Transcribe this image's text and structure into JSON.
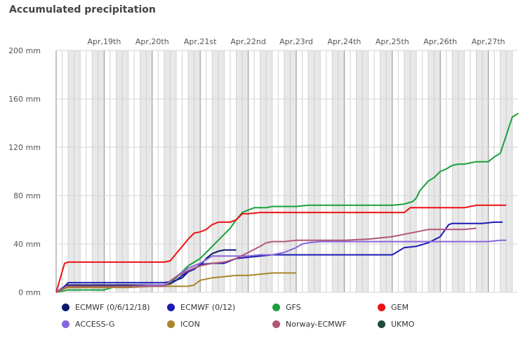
{
  "chart_data": {
    "type": "line",
    "title": "Accumulated precipitation",
    "ylabel": "",
    "xlabel": "",
    "ylim": [
      0,
      200
    ],
    "xlim": [
      0,
      37.5
    ],
    "x_units": "6-hour steps since Apr 18th 00:00",
    "y_ticks": [
      "0 mm",
      "40 mm",
      "80 mm",
      "120 mm",
      "160 mm",
      "200 mm"
    ],
    "y_tick_values": [
      0,
      40,
      80,
      120,
      160,
      200
    ],
    "x_ticks": [
      {
        "label": "Apr,19th",
        "x": 6
      },
      {
        "label": "Apr,20th",
        "x": 10
      },
      {
        "label": "Apr,21st",
        "x": 14
      },
      {
        "label": "Apr,22nd",
        "x": 18
      },
      {
        "label": "Apr,23rd",
        "x": 22
      },
      {
        "label": "Apr,24th",
        "x": 26
      },
      {
        "label": "Apr,25th",
        "x": 30
      },
      {
        "label": "Apr,26th",
        "x": 34
      },
      {
        "label": "Apr,27th",
        "x": 38
      }
    ],
    "series": [
      {
        "name": "ECMWF (0/6/12/18)",
        "color": "#0a1a6e",
        "points": [
          [
            0,
            0
          ],
          [
            0.5,
            2
          ],
          [
            0.8,
            6
          ],
          [
            1,
            6
          ],
          [
            2,
            6
          ],
          [
            4,
            6
          ],
          [
            6,
            6
          ],
          [
            8,
            6
          ],
          [
            9,
            6
          ],
          [
            9.5,
            7
          ],
          [
            10,
            10
          ],
          [
            10.5,
            12
          ],
          [
            11,
            17
          ],
          [
            11.5,
            20
          ],
          [
            12,
            22
          ],
          [
            12.5,
            28
          ],
          [
            13,
            32
          ],
          [
            13.5,
            34
          ],
          [
            14,
            35
          ],
          [
            15,
            35
          ]
        ]
      },
      {
        "name": "ECMWF (0/12)",
        "color": "#1a1ab5",
        "points": [
          [
            0,
            0
          ],
          [
            0.7,
            5
          ],
          [
            1,
            8
          ],
          [
            2,
            8
          ],
          [
            4,
            8
          ],
          [
            6,
            8
          ],
          [
            8,
            8
          ],
          [
            9,
            8
          ],
          [
            9.5,
            9
          ],
          [
            10,
            10
          ],
          [
            10.5,
            14
          ],
          [
            11,
            17
          ],
          [
            11.5,
            19
          ],
          [
            12,
            23
          ],
          [
            13,
            24
          ],
          [
            14,
            24
          ],
          [
            14.5,
            26
          ],
          [
            15,
            28
          ],
          [
            16,
            29
          ],
          [
            17,
            30
          ],
          [
            18,
            31
          ],
          [
            20,
            31
          ],
          [
            25,
            31
          ],
          [
            28,
            31
          ],
          [
            29,
            37
          ],
          [
            30,
            38
          ],
          [
            31,
            41
          ],
          [
            32,
            46
          ],
          [
            32.7,
            56
          ],
          [
            33,
            57
          ],
          [
            34,
            57
          ],
          [
            35.5,
            57
          ],
          [
            36.5,
            58
          ],
          [
            37.2,
            58
          ]
        ]
      },
      {
        "name": "GFS",
        "color": "#19a03b",
        "points": [
          [
            0,
            0
          ],
          [
            1,
            2
          ],
          [
            2,
            2
          ],
          [
            3,
            2
          ],
          [
            4,
            2
          ],
          [
            5,
            5
          ],
          [
            6,
            5
          ],
          [
            8,
            5
          ],
          [
            9,
            5
          ],
          [
            10,
            12
          ],
          [
            11,
            22
          ],
          [
            12,
            28
          ],
          [
            13,
            38
          ],
          [
            14,
            48
          ],
          [
            14.5,
            53
          ],
          [
            15,
            60
          ],
          [
            15.5,
            66
          ],
          [
            16,
            68
          ],
          [
            16.5,
            70
          ],
          [
            17,
            70
          ],
          [
            17.5,
            70
          ],
          [
            18,
            71
          ],
          [
            19,
            71
          ],
          [
            20,
            71
          ],
          [
            21,
            72
          ],
          [
            22,
            72
          ],
          [
            24,
            72
          ],
          [
            26,
            72
          ],
          [
            28,
            72
          ],
          [
            29,
            73
          ],
          [
            29.7,
            75
          ],
          [
            30,
            78
          ],
          [
            30.3,
            84
          ],
          [
            31,
            92
          ],
          [
            31.5,
            95
          ],
          [
            32,
            100
          ],
          [
            32.5,
            102
          ],
          [
            33,
            105
          ],
          [
            33.5,
            106
          ],
          [
            34,
            106
          ],
          [
            34.5,
            107
          ],
          [
            35,
            108
          ],
          [
            36,
            108
          ],
          [
            36.5,
            112
          ],
          [
            37,
            115
          ],
          [
            37.5,
            130
          ],
          [
            38,
            145
          ],
          [
            38.5,
            148
          ]
        ]
      },
      {
        "name": "GEM",
        "color": "#ee1111",
        "points": [
          [
            0,
            0
          ],
          [
            0.7,
            24
          ],
          [
            1,
            25
          ],
          [
            2,
            25
          ],
          [
            4,
            25
          ],
          [
            6,
            25
          ],
          [
            8,
            25
          ],
          [
            9,
            25
          ],
          [
            9.5,
            26
          ],
          [
            10,
            32
          ],
          [
            11,
            44
          ],
          [
            11.5,
            49
          ],
          [
            12,
            50
          ],
          [
            12.5,
            52
          ],
          [
            13,
            56
          ],
          [
            13.5,
            58
          ],
          [
            14,
            58
          ],
          [
            14.5,
            58
          ],
          [
            15,
            60
          ],
          [
            15.5,
            65
          ],
          [
            16,
            65
          ],
          [
            17,
            66
          ],
          [
            18,
            66
          ],
          [
            20,
            66
          ],
          [
            22,
            66
          ],
          [
            24,
            66
          ],
          [
            26,
            66
          ],
          [
            28,
            66
          ],
          [
            29,
            66
          ],
          [
            29.5,
            70
          ],
          [
            30,
            70
          ],
          [
            31,
            70
          ],
          [
            32,
            70
          ],
          [
            34,
            70
          ],
          [
            34.5,
            71
          ],
          [
            35,
            72
          ],
          [
            36,
            72
          ],
          [
            37,
            72
          ],
          [
            37.5,
            72
          ]
        ]
      },
      {
        "name": "ACCESS-G",
        "color": "#8866dd",
        "points": [
          [
            0,
            0
          ],
          [
            0.7,
            4
          ],
          [
            1,
            4
          ],
          [
            2,
            4
          ],
          [
            4,
            4
          ],
          [
            6,
            5
          ],
          [
            8,
            6
          ],
          [
            9,
            6
          ],
          [
            10,
            13
          ],
          [
            11,
            20
          ],
          [
            12,
            24
          ],
          [
            12.5,
            27
          ],
          [
            13,
            30
          ],
          [
            14,
            30
          ],
          [
            15,
            30
          ],
          [
            16,
            30
          ],
          [
            17,
            31
          ],
          [
            18,
            31
          ],
          [
            19,
            33
          ],
          [
            20,
            37
          ],
          [
            20.5,
            40
          ],
          [
            21,
            41
          ],
          [
            22,
            42
          ],
          [
            24,
            42
          ],
          [
            26,
            42
          ],
          [
            28,
            42
          ],
          [
            30,
            42
          ],
          [
            32,
            42
          ],
          [
            34,
            42
          ],
          [
            36,
            42
          ],
          [
            37,
            43
          ],
          [
            37.5,
            43
          ]
        ]
      },
      {
        "name": "ICON",
        "color": "#a8862a",
        "points": [
          [
            0,
            0
          ],
          [
            0.7,
            3
          ],
          [
            1,
            4
          ],
          [
            2,
            4
          ],
          [
            4,
            4
          ],
          [
            6,
            4
          ],
          [
            8,
            5
          ],
          [
            9,
            5
          ],
          [
            10,
            5
          ],
          [
            11,
            5
          ],
          [
            11.5,
            6
          ],
          [
            12,
            10
          ],
          [
            13,
            12
          ],
          [
            14,
            13
          ],
          [
            15,
            14
          ],
          [
            16,
            14
          ],
          [
            17,
            15
          ],
          [
            18,
            16
          ],
          [
            19,
            16
          ],
          [
            20,
            16
          ]
        ]
      },
      {
        "name": "Norway-ECMWF",
        "color": "#b0577a",
        "points": [
          [
            0,
            0
          ],
          [
            0.7,
            4
          ],
          [
            1,
            5
          ],
          [
            2,
            5
          ],
          [
            4,
            5
          ],
          [
            6,
            5
          ],
          [
            8,
            5
          ],
          [
            9,
            5
          ],
          [
            10,
            13
          ],
          [
            11,
            18
          ],
          [
            12,
            22
          ],
          [
            13,
            24
          ],
          [
            14,
            25
          ],
          [
            15,
            28
          ],
          [
            16,
            33
          ],
          [
            17,
            38
          ],
          [
            17.5,
            41
          ],
          [
            18,
            42
          ],
          [
            19,
            42
          ],
          [
            20,
            43
          ],
          [
            22,
            43
          ],
          [
            24,
            43
          ],
          [
            26,
            44
          ],
          [
            28,
            46
          ],
          [
            29,
            48
          ],
          [
            30,
            50
          ],
          [
            31,
            52
          ],
          [
            32,
            52
          ],
          [
            33,
            52
          ],
          [
            34,
            52
          ],
          [
            35,
            53
          ]
        ]
      },
      {
        "name": "UKMO",
        "color": "#1e4a3e",
        "points": []
      }
    ]
  }
}
